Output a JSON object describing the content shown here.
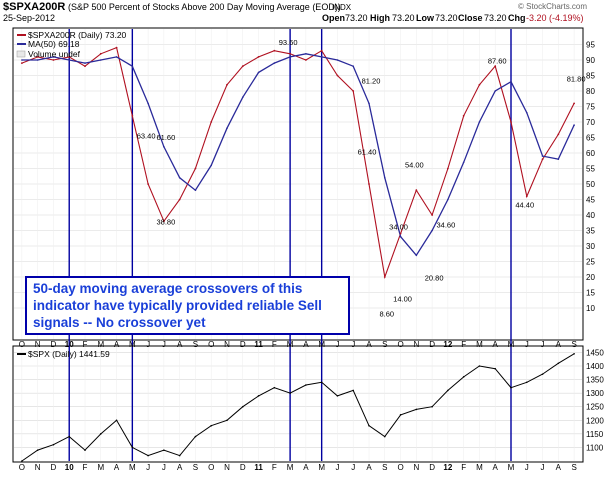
{
  "header": {
    "symbol": "$SPXA200R",
    "description": "(S&P 500 Percent of Stocks Above 200 Day Moving Average (EOD))",
    "exchange": "INDX",
    "date": "25-Sep-2012",
    "open_label": "Open",
    "open": "73.20",
    "high_label": "High",
    "high": "73.20",
    "low_label": "Low",
    "low": "73.20",
    "close_label": "Close",
    "close": "73.20",
    "chg_label": "Chg",
    "chg": "-3.20 (-4.19%)",
    "watermark": "© StockCharts.com"
  },
  "legend": {
    "series1": "$SPXA200R (Daily) 73.20",
    "series2": "MA(50) 69.18",
    "series3": "Volume undef"
  },
  "lower_legend": "$SPX (Daily) 1441.59",
  "annotation_text": "50-day moving average crossovers of this indicator have typically provided reliable Sell signals -- No crossover yet",
  "colors": {
    "price": "#b01020",
    "ma": "#2a2a9a",
    "spx": "#000000",
    "vline": "#0000a0",
    "annotation": "#1a3fd8"
  },
  "chart_data": [
    {
      "type": "line",
      "title": "$SPXA200R (Daily)",
      "x": [
        "2009-10",
        "2009-11",
        "2009-12",
        "2010-01",
        "2010-02",
        "2010-03",
        "2010-04",
        "2010-05",
        "2010-06",
        "2010-07",
        "2010-08",
        "2010-09",
        "2010-10",
        "2010-11",
        "2010-12",
        "2011-01",
        "2011-02",
        "2011-03",
        "2011-04",
        "2011-05",
        "2011-06",
        "2011-07",
        "2011-08",
        "2011-09",
        "2011-10",
        "2011-11",
        "2011-12",
        "2012-01",
        "2012-02",
        "2012-03",
        "2012-04",
        "2012-05",
        "2012-06",
        "2012-07",
        "2012-08",
        "2012-09"
      ],
      "series": [
        {
          "name": "$SPXA200R",
          "values": [
            89,
            91,
            90,
            91,
            88,
            92,
            94,
            72,
            50,
            38,
            45,
            55,
            70,
            82,
            88,
            91,
            93,
            92,
            90,
            93,
            85,
            80,
            50,
            20,
            34,
            48,
            40,
            55,
            72,
            82,
            88,
            70,
            46,
            58,
            66,
            76
          ]
        },
        {
          "name": "MA(50)",
          "values": [
            90,
            90,
            91,
            90,
            89,
            90,
            91,
            88,
            76,
            62,
            52,
            48,
            56,
            68,
            78,
            86,
            89,
            91,
            92,
            91,
            90,
            88,
            76,
            52,
            33,
            27,
            35,
            45,
            57,
            70,
            80,
            83,
            73,
            59,
            58,
            69
          ]
        }
      ],
      "ylim": [
        0,
        100
      ],
      "yticks": [
        10,
        15,
        20,
        25,
        30,
        35,
        40,
        45,
        50,
        55,
        60,
        65,
        70,
        75,
        80,
        85,
        90,
        95
      ],
      "annotations": [
        "38.80",
        "63.40",
        "61.60",
        "93.60",
        "81.20",
        "61.40",
        "8.60",
        "34.00",
        "14.00",
        "54.00",
        "20.80",
        "34.60",
        "87.60",
        "44.40",
        "81.80"
      ],
      "x_labels": [
        "O",
        "N",
        "D",
        "10",
        "F",
        "M",
        "A",
        "M",
        "J",
        "J",
        "A",
        "S",
        "O",
        "N",
        "D",
        "11",
        "F",
        "M",
        "A",
        "M",
        "J",
        "J",
        "A",
        "S",
        "O",
        "N",
        "D",
        "12",
        "F",
        "M",
        "A",
        "M",
        "J",
        "J",
        "A",
        "S"
      ],
      "year_labels": [
        "10",
        "11",
        "12"
      ]
    },
    {
      "type": "line",
      "title": "$SPX (Daily)",
      "x": [
        "2009-10",
        "2009-11",
        "2009-12",
        "2010-01",
        "2010-02",
        "2010-03",
        "2010-04",
        "2010-05",
        "2010-06",
        "2010-07",
        "2010-08",
        "2010-09",
        "2010-10",
        "2010-11",
        "2010-12",
        "2011-01",
        "2011-02",
        "2011-03",
        "2011-04",
        "2011-05",
        "2011-06",
        "2011-07",
        "2011-08",
        "2011-09",
        "2011-10",
        "2011-11",
        "2011-12",
        "2012-01",
        "2012-02",
        "2012-03",
        "2012-04",
        "2012-05",
        "2012-06",
        "2012-07",
        "2012-08",
        "2012-09"
      ],
      "series": [
        {
          "name": "$SPX",
          "values": [
            1050,
            1090,
            1110,
            1140,
            1090,
            1150,
            1200,
            1100,
            1070,
            1090,
            1070,
            1140,
            1180,
            1200,
            1250,
            1290,
            1320,
            1300,
            1330,
            1340,
            1290,
            1310,
            1180,
            1140,
            1220,
            1240,
            1250,
            1310,
            1360,
            1400,
            1390,
            1320,
            1340,
            1370,
            1410,
            1445
          ]
        }
      ],
      "ylim": [
        1050,
        1470
      ],
      "yticks": [
        1100,
        1150,
        1200,
        1250,
        1300,
        1350,
        1400,
        1450
      ],
      "vertical_signal_lines": [
        "2010-01",
        "2010-05",
        "2011-03",
        "2011-05",
        "2012-05"
      ]
    }
  ]
}
